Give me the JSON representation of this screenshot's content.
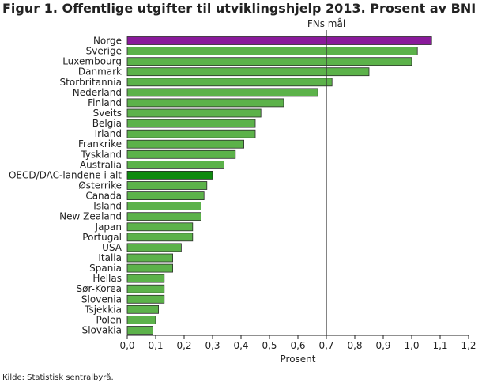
{
  "chart_data": {
    "type": "bar",
    "orientation": "horizontal",
    "title": "Figur 1. Offentlige utgifter til utviklingshjelp 2013. Prosent av BNI",
    "xlabel": "Prosent",
    "xlim": [
      0,
      1.2
    ],
    "xticks": [
      "0,0",
      "0,1",
      "0,2",
      "0,3",
      "0,4",
      "0,5",
      "0,6",
      "0,7",
      "0,8",
      "0,9",
      "1,0",
      "1,1",
      "1,2"
    ],
    "categories": [
      "Norge",
      "Sverige",
      "Luxembourg",
      "Danmark",
      "Storbritannia",
      "Nederland",
      "Finland",
      "Sveits",
      "Belgia",
      "Irland",
      "Frankrike",
      "Tyskland",
      "Australia",
      "OECD/DAC-landene i alt",
      "Østerrike",
      "Canada",
      "Island",
      "New Zealand",
      "Japan",
      "Portugal",
      "USA",
      "Italia",
      "Spania",
      "Hellas",
      "Sør-Korea",
      "Slovenia",
      "Tsjekkia",
      "Polen",
      "Slovakia"
    ],
    "values": [
      1.07,
      1.02,
      1.0,
      0.85,
      0.72,
      0.67,
      0.55,
      0.47,
      0.45,
      0.45,
      0.41,
      0.38,
      0.34,
      0.3,
      0.28,
      0.27,
      0.26,
      0.26,
      0.23,
      0.23,
      0.19,
      0.16,
      0.16,
      0.13,
      0.13,
      0.13,
      0.11,
      0.1,
      0.09
    ],
    "highlight": {
      "Norge": "#8a1a9b",
      "OECD/DAC-landene i alt": "#0f8a0f"
    },
    "bar_color": "#5cb24a",
    "reference_line": {
      "label": "FNs mål",
      "value": 0.7
    },
    "grid": false,
    "legend": "none",
    "source": "Kilde: Statistisk sentralbyrå."
  }
}
